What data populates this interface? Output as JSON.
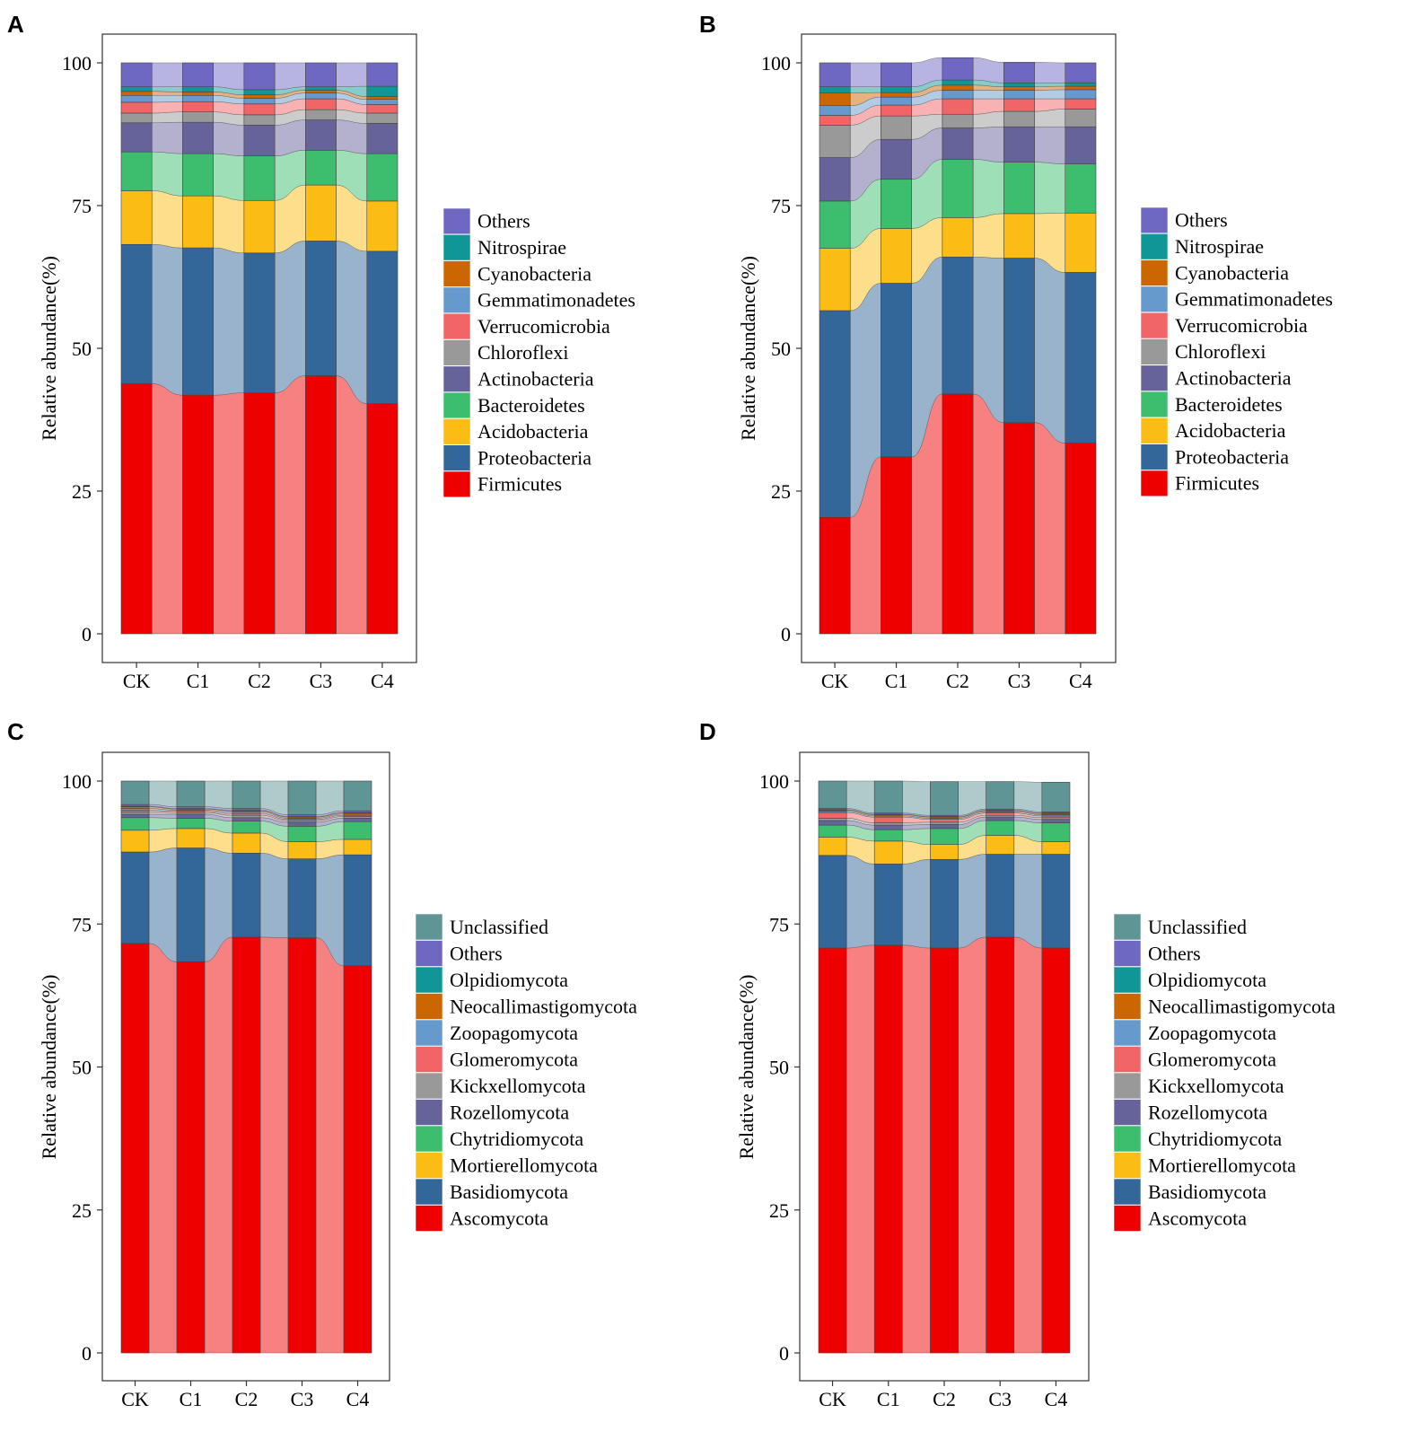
{
  "chart_data": [
    {
      "panel": "A",
      "type": "bar",
      "stacked": true,
      "alluvial_connectors": true,
      "categories": [
        "CK",
        "C1",
        "C2",
        "C3",
        "C4"
      ],
      "ylabel": "Relative  abundance(%)",
      "xlabel": "",
      "ylim": [
        0,
        100
      ],
      "yticks": [
        0,
        25,
        50,
        75,
        100
      ],
      "legend_position": "right",
      "series": [
        {
          "name": "Firmicutes",
          "color": "#ee0000",
          "values": [
            43.8,
            41.8,
            42.2,
            45.2,
            40.3
          ]
        },
        {
          "name": "Proteobacteria",
          "color": "#336699",
          "values": [
            24.4,
            25.8,
            24.5,
            23.6,
            26.7
          ]
        },
        {
          "name": "Acidobacteria",
          "color": "#fbbd14",
          "values": [
            9.4,
            9.1,
            9.2,
            9.8,
            8.8
          ]
        },
        {
          "name": "Bacteroidetes",
          "color": "#3cbe6e",
          "values": [
            6.8,
            7.4,
            7.8,
            6.1,
            8.3
          ]
        },
        {
          "name": "Actinobacteria",
          "color": "#66639b",
          "values": [
            5.1,
            5.5,
            5.4,
            5.3,
            5.3
          ]
        },
        {
          "name": "Chloroflexi",
          "color": "#999999",
          "values": [
            1.7,
            1.8,
            1.8,
            1.8,
            1.8
          ]
        },
        {
          "name": "Verrucomicrobia",
          "color": "#f16566",
          "values": [
            1.9,
            1.8,
            1.9,
            1.9,
            1.5
          ]
        },
        {
          "name": "Gemmatimonadetes",
          "color": "#6699cc",
          "values": [
            1.2,
            1.1,
            1.0,
            1.0,
            0.9
          ]
        },
        {
          "name": "Cyanobacteria",
          "color": "#cc6600",
          "values": [
            0.7,
            0.6,
            0.6,
            0.5,
            0.5
          ]
        },
        {
          "name": "Nitrospirae",
          "color": "#109696",
          "values": [
            0.8,
            0.9,
            0.9,
            0.6,
            1.8
          ]
        },
        {
          "name": "Others",
          "color": "#6e68c2",
          "values": [
            4.2,
            4.2,
            4.7,
            4.2,
            4.1
          ]
        }
      ]
    },
    {
      "panel": "B",
      "type": "bar",
      "stacked": true,
      "alluvial_connectors": true,
      "categories": [
        "CK",
        "C1",
        "C2",
        "C3",
        "C4"
      ],
      "ylabel": "Relative  abundance(%)",
      "xlabel": "",
      "ylim": [
        0,
        100
      ],
      "yticks": [
        0,
        25,
        50,
        75,
        100
      ],
      "legend_position": "right",
      "series": [
        {
          "name": "Firmicutes",
          "color": "#ee0000",
          "values": [
            20.4,
            31.0,
            42.0,
            37.0,
            33.4
          ]
        },
        {
          "name": "Proteobacteria",
          "color": "#336699",
          "values": [
            36.2,
            30.4,
            24.0,
            28.8,
            29.9
          ]
        },
        {
          "name": "Acidobacteria",
          "color": "#fbbd14",
          "values": [
            10.9,
            9.6,
            6.9,
            7.8,
            10.4
          ]
        },
        {
          "name": "Bacteroidetes",
          "color": "#3cbe6e",
          "values": [
            8.3,
            8.6,
            10.2,
            9.0,
            8.6
          ]
        },
        {
          "name": "Actinobacteria",
          "color": "#66639b",
          "values": [
            7.6,
            7.0,
            5.5,
            6.2,
            6.5
          ]
        },
        {
          "name": "Chloroflexi",
          "color": "#999999",
          "values": [
            5.7,
            4.1,
            2.4,
            2.7,
            3.1
          ]
        },
        {
          "name": "Verrucomicrobia",
          "color": "#f16566",
          "values": [
            1.7,
            1.9,
            2.7,
            2.2,
            1.8
          ]
        },
        {
          "name": "Gemmatimonadetes",
          "color": "#6699cc",
          "values": [
            1.7,
            1.4,
            1.5,
            1.5,
            1.6
          ]
        },
        {
          "name": "Cyanobacteria",
          "color": "#cc6600",
          "values": [
            2.2,
            0.8,
            0.9,
            0.6,
            0.6
          ]
        },
        {
          "name": "Nitrospirae",
          "color": "#109696",
          "values": [
            1.1,
            1.0,
            0.9,
            0.7,
            0.6
          ]
        },
        {
          "name": "Others",
          "color": "#6e68c2",
          "values": [
            4.2,
            4.2,
            3.9,
            3.6,
            3.5
          ]
        }
      ]
    },
    {
      "panel": "C",
      "type": "bar",
      "stacked": true,
      "alluvial_connectors": true,
      "categories": [
        "CK",
        "C1",
        "C2",
        "C3",
        "C4"
      ],
      "ylabel": "Relative  abundance(%)",
      "xlabel": "",
      "ylim": [
        0,
        100
      ],
      "yticks": [
        0,
        25,
        50,
        75,
        100
      ],
      "legend_position": "right",
      "series": [
        {
          "name": "Ascomycota",
          "color": "#ee0000",
          "values": [
            71.6,
            68.4,
            72.7,
            72.6,
            67.7
          ]
        },
        {
          "name": "Basidiomycota",
          "color": "#336699",
          "values": [
            16.0,
            19.9,
            14.7,
            13.8,
            19.4
          ]
        },
        {
          "name": "Mortierellomycota",
          "color": "#fbbd14",
          "values": [
            3.8,
            3.4,
            3.5,
            3.0,
            2.7
          ]
        },
        {
          "name": "Chytridiomycota",
          "color": "#3cbe6e",
          "values": [
            2.2,
            1.8,
            2.1,
            2.7,
            3.1
          ]
        },
        {
          "name": "Rozellomycota",
          "color": "#66639b",
          "values": [
            0.6,
            0.7,
            0.6,
            0.7,
            0.6
          ]
        },
        {
          "name": "Kickxellomycota",
          "color": "#999999",
          "values": [
            0.4,
            0.3,
            0.4,
            0.3,
            0.3
          ]
        },
        {
          "name": "Glomeromycota",
          "color": "#f16566",
          "values": [
            0.3,
            0.2,
            0.3,
            0.2,
            0.2
          ]
        },
        {
          "name": "Zoopagomycota",
          "color": "#6699cc",
          "values": [
            0.3,
            0.2,
            0.3,
            0.2,
            0.2
          ]
        },
        {
          "name": "Neocallimastigomycota",
          "color": "#cc6600",
          "values": [
            0.3,
            0.2,
            0.2,
            0.2,
            0.2
          ]
        },
        {
          "name": "Olpidiomycota",
          "color": "#109696",
          "values": [
            0.1,
            0.1,
            0.1,
            0.1,
            0.1
          ]
        },
        {
          "name": "Others",
          "color": "#6e68c2",
          "values": [
            0.3,
            0.3,
            0.3,
            0.3,
            0.3
          ]
        },
        {
          "name": "Unclassified",
          "color": "#5f9595",
          "values": [
            4.1,
            4.5,
            4.8,
            5.9,
            5.2
          ]
        }
      ]
    },
    {
      "panel": "D",
      "type": "bar",
      "stacked": true,
      "alluvial_connectors": true,
      "categories": [
        "CK",
        "C1",
        "C2",
        "C3",
        "C4"
      ],
      "ylabel": "Relative  abundance(%)",
      "xlabel": "",
      "ylim": [
        0,
        100
      ],
      "yticks": [
        0,
        25,
        50,
        75,
        100
      ],
      "legend_position": "right",
      "series": [
        {
          "name": "Ascomycota",
          "color": "#ee0000",
          "values": [
            70.8,
            71.3,
            70.8,
            72.7,
            70.8
          ]
        },
        {
          "name": "Basidiomycota",
          "color": "#336699",
          "values": [
            16.2,
            14.2,
            15.5,
            14.5,
            16.4
          ]
        },
        {
          "name": "Mortierellomycota",
          "color": "#fbbd14",
          "values": [
            3.2,
            4.0,
            2.6,
            3.3,
            2.2
          ]
        },
        {
          "name": "Chytridiomycota",
          "color": "#3cbe6e",
          "values": [
            2.1,
            2.0,
            2.8,
            2.6,
            3.3
          ]
        },
        {
          "name": "Rozellomycota",
          "color": "#66639b",
          "values": [
            0.8,
            0.8,
            0.7,
            0.6,
            0.6
          ]
        },
        {
          "name": "Kickxellomycota",
          "color": "#999999",
          "values": [
            0.4,
            0.4,
            0.4,
            0.3,
            0.3
          ]
        },
        {
          "name": "Glomeromycota",
          "color": "#f16566",
          "values": [
            1.0,
            1.0,
            0.5,
            0.4,
            0.3
          ]
        },
        {
          "name": "Zoopagomycota",
          "color": "#6699cc",
          "values": [
            0.2,
            0.2,
            0.2,
            0.2,
            0.2
          ]
        },
        {
          "name": "Neocallimastigomycota",
          "color": "#cc6600",
          "values": [
            0.2,
            0.2,
            0.2,
            0.2,
            0.2
          ]
        },
        {
          "name": "Olpidiomycota",
          "color": "#109696",
          "values": [
            0.1,
            0.1,
            0.1,
            0.1,
            0.1
          ]
        },
        {
          "name": "Others",
          "color": "#6e68c2",
          "values": [
            0.2,
            0.2,
            0.2,
            0.2,
            0.2
          ]
        },
        {
          "name": "Unclassified",
          "color": "#5f9595",
          "values": [
            4.8,
            5.6,
            5.9,
            4.8,
            5.2
          ]
        }
      ]
    }
  ]
}
